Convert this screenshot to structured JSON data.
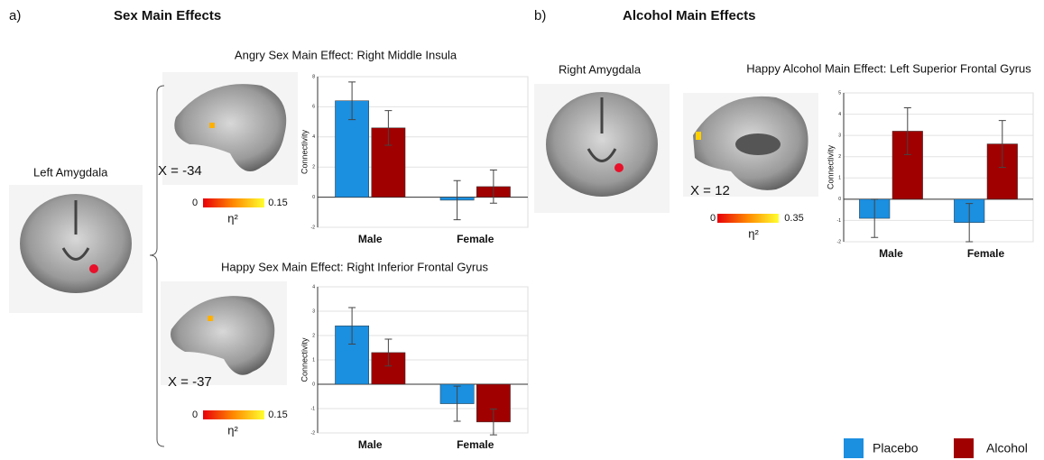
{
  "panels": [
    {
      "label": "a)",
      "title": "Sex Main Effects"
    },
    {
      "label": "b)",
      "title": "Alcohol Main Effects"
    }
  ],
  "seeds": [
    "Left Amygdala",
    "Right Amygdala"
  ],
  "brain_slices": [
    {
      "label": "X = -34",
      "colorbar": {
        "min": 0,
        "max": 0.15,
        "label": "η²"
      }
    },
    {
      "label": "X = -37",
      "colorbar": {
        "min": 0,
        "max": 0.15,
        "label": "η²"
      }
    },
    {
      "label": "X = 12",
      "colorbar": {
        "min": 0,
        "max": 0.35,
        "label": "η²"
      }
    }
  ],
  "chart_data": [
    {
      "type": "bar",
      "title": "Angry Sex Main Effect: Right Middle Insula",
      "y_label": "Connectivity",
      "categories": [
        "Male",
        "Female"
      ],
      "series": [
        {
          "name": "Placebo",
          "color": "#1b8fe0",
          "values": [
            6.4,
            -0.2
          ],
          "errors": [
            1.25,
            1.3
          ]
        },
        {
          "name": "Alcohol",
          "color": "#a00000",
          "values": [
            4.6,
            0.7
          ],
          "errors": [
            1.15,
            1.1
          ]
        }
      ],
      "ylim": [
        -2,
        8
      ],
      "yticks": [
        -2,
        0,
        2,
        4,
        6,
        8
      ],
      "grid": true
    },
    {
      "type": "bar",
      "title": "Happy Sex Main Effect: Right Inferior Frontal Gyrus",
      "y_label": "Connectivity",
      "categories": [
        "Male",
        "Female"
      ],
      "series": [
        {
          "name": "Placebo",
          "color": "#1b8fe0",
          "values": [
            2.4,
            -0.8
          ],
          "errors": [
            0.75,
            0.72
          ]
        },
        {
          "name": "Alcohol",
          "color": "#a00000",
          "values": [
            1.3,
            -1.55
          ],
          "errors": [
            0.55,
            0.53
          ]
        }
      ],
      "ylim": [
        -2,
        4
      ],
      "yticks": [
        -2,
        -1,
        0,
        1,
        2,
        3,
        4
      ],
      "grid": true
    },
    {
      "type": "bar",
      "title": "Happy Alcohol Main Effect: Left Superior Frontal Gyrus",
      "y_label": "Connectivity",
      "categories": [
        "Male",
        "Female"
      ],
      "series": [
        {
          "name": "Placebo",
          "color": "#1b8fe0",
          "values": [
            -0.9,
            -1.1
          ],
          "errors": [
            0.9,
            0.9
          ]
        },
        {
          "name": "Alcohol",
          "color": "#a00000",
          "values": [
            3.2,
            2.6
          ],
          "errors": [
            1.1,
            1.1
          ]
        }
      ],
      "ylim": [
        -2,
        5
      ],
      "yticks": [
        -2,
        -1,
        0,
        1,
        2,
        3,
        4,
        5
      ],
      "grid": true
    }
  ]
}
